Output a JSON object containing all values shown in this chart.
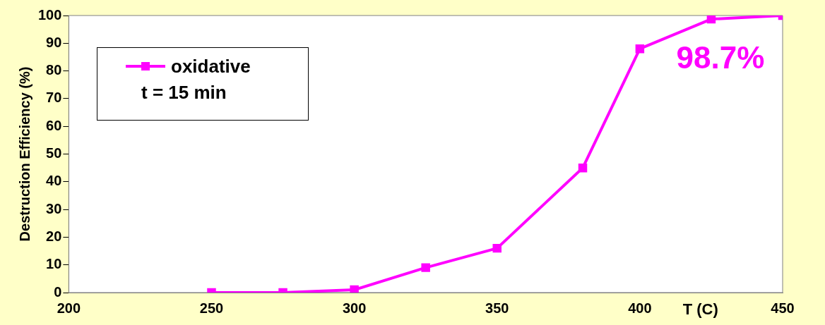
{
  "chart_data": {
    "type": "line",
    "xlabel": "T (C)",
    "ylabel": "Destruction Efficiency (%)",
    "x": [
      250,
      275,
      300,
      325,
      350,
      380,
      400,
      425,
      450
    ],
    "series": [
      {
        "name": "oxidative",
        "color": "#ff00ff",
        "values": [
          0,
          0,
          1,
          9,
          16,
          45,
          88,
          98.7,
          100
        ]
      }
    ],
    "xlim": [
      200,
      450
    ],
    "xticks": [
      200,
      250,
      300,
      350,
      400,
      450
    ],
    "ylim": [
      0,
      100
    ],
    "yticks": [
      0,
      10,
      20,
      30,
      40,
      50,
      60,
      70,
      80,
      90,
      100
    ],
    "annotations": [
      "t = 15 min",
      {
        "text": "98.7%",
        "x": 425,
        "y": 98.7
      }
    ],
    "grid": false,
    "legend": "top left",
    "marker": "square",
    "line_style": "solid"
  }
}
